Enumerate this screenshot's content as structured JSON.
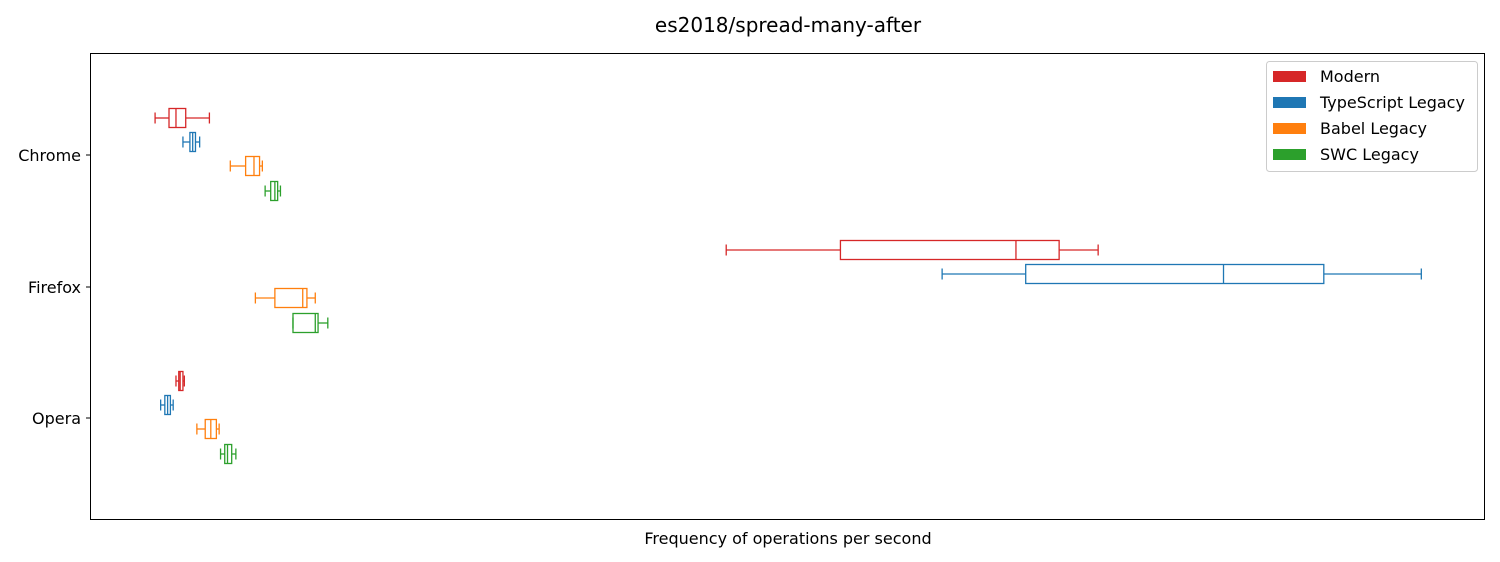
{
  "chart_data": {
    "type": "boxplot",
    "orientation": "horizontal",
    "title": "es2018/spread-many-after",
    "xlabel": "Frequency of operations per second",
    "ylabel": "",
    "x_ticks_visible": false,
    "grid": false,
    "legend_position": "top-right",
    "categories": [
      "Chrome",
      "Firefox",
      "Opera"
    ],
    "series": [
      {
        "name": "Modern",
        "color": "#d62728",
        "boxes": [
          {
            "category": "Chrome",
            "whisker_low": 4.6,
            "q1": 5.6,
            "median": 6.1,
            "q3": 6.8,
            "whisker_high": 8.5
          },
          {
            "category": "Firefox",
            "whisker_low": 45.6,
            "q1": 53.8,
            "median": 66.4,
            "q3": 69.5,
            "whisker_high": 72.3
          },
          {
            "category": "Opera",
            "whisker_low": 6.1,
            "q1": 6.3,
            "median": 6.4,
            "q3": 6.6,
            "whisker_high": 6.7
          }
        ]
      },
      {
        "name": "TypeScript Legacy",
        "color": "#1f77b4",
        "boxes": [
          {
            "category": "Chrome",
            "whisker_low": 6.6,
            "q1": 7.1,
            "median": 7.3,
            "q3": 7.5,
            "whisker_high": 7.8
          },
          {
            "category": "Firefox",
            "whisker_low": 61.1,
            "q1": 67.1,
            "median": 81.3,
            "q3": 88.5,
            "whisker_high": 95.5
          },
          {
            "category": "Opera",
            "whisker_low": 5.0,
            "q1": 5.3,
            "median": 5.5,
            "q3": 5.7,
            "whisker_high": 5.9
          }
        ]
      },
      {
        "name": "Babel Legacy",
        "color": "#ff7f0e",
        "boxes": [
          {
            "category": "Chrome",
            "whisker_low": 10.0,
            "q1": 11.1,
            "median": 11.7,
            "q3": 12.1,
            "whisker_high": 12.3
          },
          {
            "category": "Firefox",
            "whisker_low": 11.8,
            "q1": 13.2,
            "median": 15.2,
            "q3": 15.5,
            "whisker_high": 16.1
          },
          {
            "category": "Opera",
            "whisker_low": 7.6,
            "q1": 8.2,
            "median": 8.6,
            "q3": 9.0,
            "whisker_high": 9.2
          }
        ]
      },
      {
        "name": "SWC Legacy",
        "color": "#2ca02c",
        "boxes": [
          {
            "category": "Chrome",
            "whisker_low": 12.5,
            "q1": 12.9,
            "median": 13.2,
            "q3": 13.4,
            "whisker_high": 13.6
          },
          {
            "category": "Firefox",
            "whisker_low": 14.5,
            "q1": 14.5,
            "median": 16.1,
            "q3": 16.3,
            "whisker_high": 17.0
          },
          {
            "category": "Opera",
            "whisker_low": 9.3,
            "q1": 9.6,
            "median": 9.8,
            "q3": 10.1,
            "whisker_high": 10.4
          }
        ]
      }
    ],
    "xlim": [
      0,
      100
    ]
  }
}
